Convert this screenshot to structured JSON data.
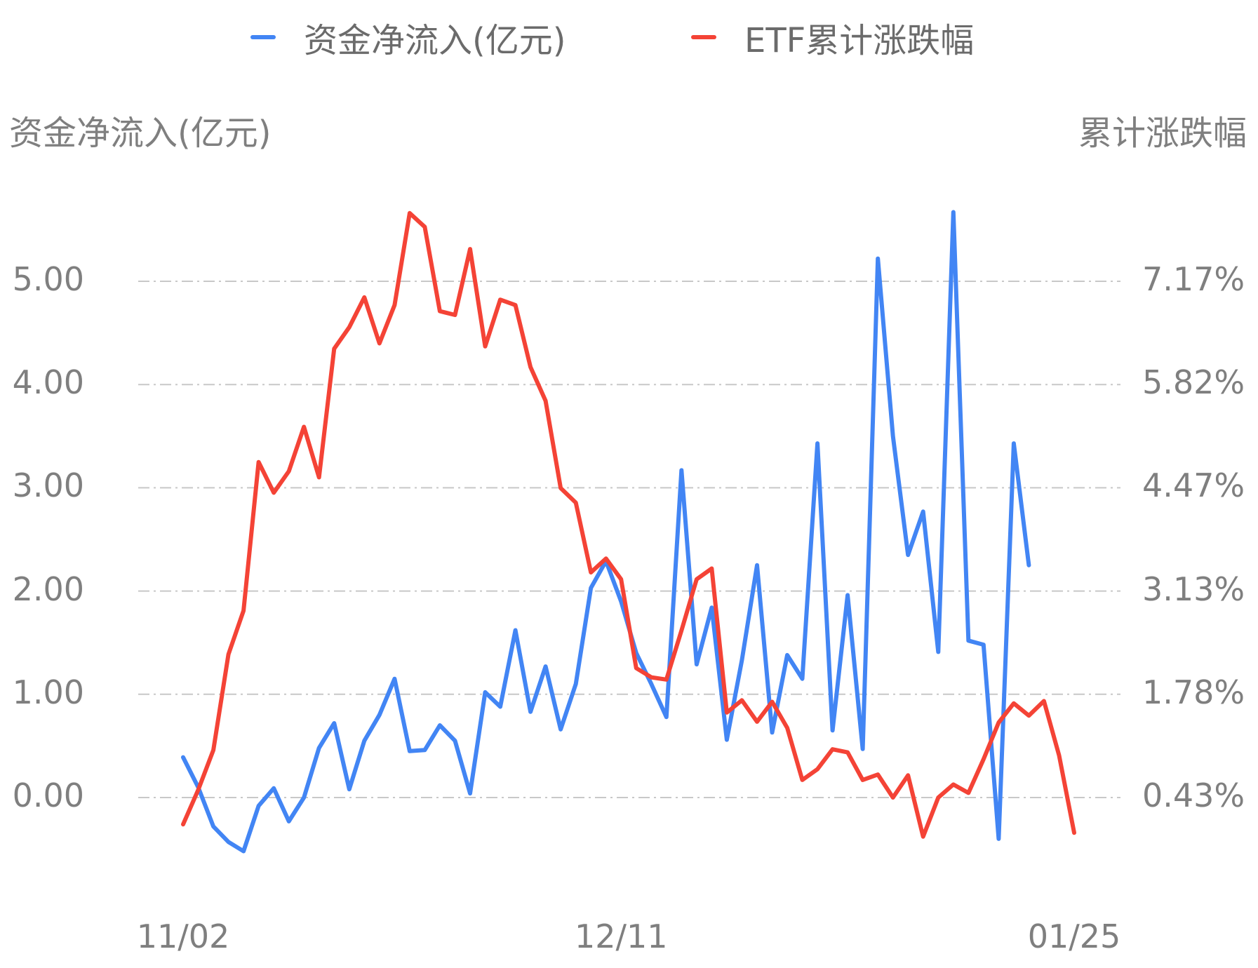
{
  "chart_data": {
    "type": "line",
    "title": "",
    "legend": {
      "position": "top",
      "entries": [
        {
          "name": "资金净流入(亿元)",
          "color": "#4285f4"
        },
        {
          "name": "ETF累计涨跌幅",
          "color": "#f44336"
        }
      ]
    },
    "left_axis": {
      "title": "资金净流入(亿元)",
      "ticks": [
        "5.00",
        "4.00",
        "3.00",
        "2.00",
        "1.00",
        "0.00"
      ],
      "range": [
        -0.75,
        5.75
      ]
    },
    "right_axis": {
      "title": "累计涨跌幅",
      "ticks": [
        "7.17%",
        "5.82%",
        "4.47%",
        "3.13%",
        "1.78%",
        "0.43%"
      ]
    },
    "x_axis": {
      "tick_labels": [
        "11/02",
        "12/11",
        "01/25"
      ],
      "tick_indices": [
        0,
        29,
        59
      ],
      "point_count": 60
    },
    "grid": {
      "horizontal": true,
      "style": "dash-dot",
      "color": "#c8c8c8"
    },
    "series": [
      {
        "name": "资金净流入(亿元)",
        "axis": "left",
        "color": "#4285f4",
        "values": [
          0.39,
          0.1,
          -0.28,
          -0.43,
          -0.52,
          -0.08,
          0.09,
          -0.23,
          0.0,
          0.48,
          0.72,
          0.08,
          0.55,
          0.8,
          1.15,
          0.45,
          0.46,
          0.7,
          0.55,
          0.04,
          1.02,
          0.88,
          1.62,
          0.83,
          1.27,
          0.66,
          1.1,
          2.03,
          2.29,
          1.9,
          1.4,
          1.1,
          0.78,
          3.17,
          1.29,
          1.84,
          0.56,
          1.33,
          2.25,
          0.63,
          1.38,
          1.15,
          3.43,
          0.65,
          1.96,
          0.47,
          5.22,
          3.5,
          2.35,
          2.77,
          1.41,
          5.67,
          1.52,
          1.48,
          -0.4,
          3.43,
          2.25,
          null,
          null,
          null
        ]
      },
      {
        "name": "ETF累计涨跌幅",
        "axis": "right",
        "color": "#f44336",
        "values_pct": [
          0.08,
          0.53,
          1.05,
          2.3,
          2.87,
          4.81,
          4.41,
          4.69,
          5.27,
          4.61,
          6.29,
          6.57,
          6.96,
          6.36,
          6.86,
          8.06,
          7.88,
          6.78,
          6.73,
          7.59,
          6.32,
          6.93,
          6.86,
          6.05,
          5.61,
          4.47,
          4.28,
          3.37,
          3.55,
          3.28,
          2.12,
          2.0,
          1.97,
          2.61,
          3.28,
          3.42,
          1.54,
          1.7,
          1.42,
          1.68,
          1.34,
          0.66,
          0.8,
          1.06,
          1.02,
          0.66,
          0.73,
          0.43,
          0.72,
          -0.08,
          0.43,
          0.6,
          0.49,
          0.93,
          1.41,
          1.66,
          1.5,
          1.69,
          0.98,
          -0.03
        ]
      }
    ]
  }
}
